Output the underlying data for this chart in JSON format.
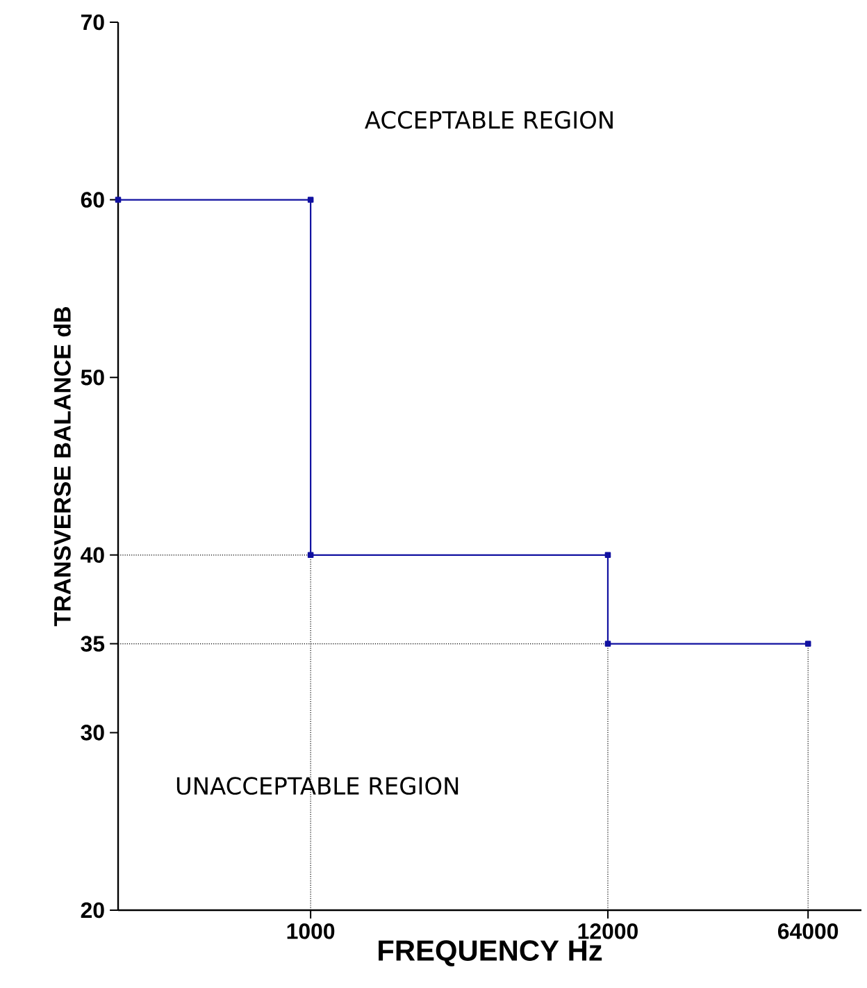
{
  "chart_data": {
    "type": "line",
    "xlabel": "FREQUENCY Hz",
    "ylabel": "TRANSVERSE BALANCE dB",
    "annotations": [
      "ACCEPTABLE REGION",
      "UNACCEPTABLE REGION"
    ],
    "x": [
      200,
      1000,
      1000,
      12000,
      12000,
      64000
    ],
    "series": [
      {
        "color": "#1010a0",
        "values": [
          60,
          60,
          40,
          40,
          35,
          35
        ]
      }
    ],
    "log": "x",
    "marker": "square",
    "line_style": "solid",
    "xlim": [
      200,
      100000
    ],
    "ylim": [
      20,
      70
    ],
    "xticks": [
      1000,
      12000,
      64000
    ],
    "yticks": [
      20,
      30,
      35,
      40,
      50,
      60,
      70
    ],
    "ref_lines": [
      {
        "axis": "y",
        "value": 40,
        "line_style": "dotted",
        "color": "#000000"
      },
      {
        "axis": "y",
        "value": 35,
        "line_style": "dotted",
        "color": "#000000"
      },
      {
        "axis": "x",
        "value": 1000,
        "line_style": "dotted",
        "color": "#000000"
      },
      {
        "axis": "x",
        "value": 12000,
        "line_style": "dotted",
        "color": "#000000"
      },
      {
        "axis": "x",
        "value": 64000,
        "line_style": "dotted",
        "color": "#000000"
      }
    ]
  }
}
